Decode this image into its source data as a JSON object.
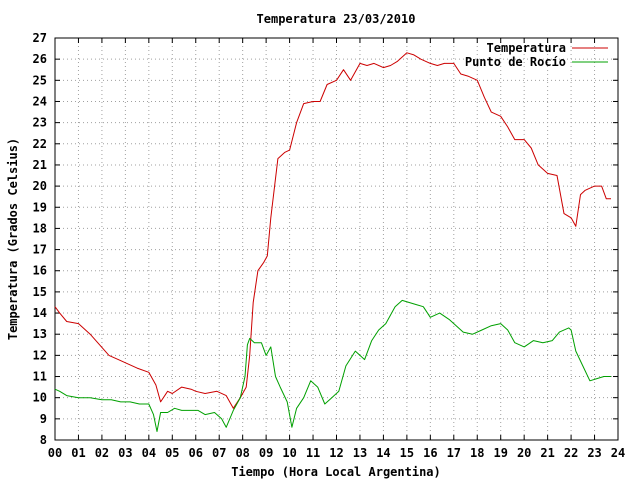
{
  "chart_data": {
    "type": "line",
    "title": "Temperatura 23/03/2010",
    "xlabel": "Tiempo (Hora Local Argentina)",
    "ylabel": "Temperatura (Grados Celsius)",
    "xlim": [
      0,
      24
    ],
    "ylim": [
      8,
      27
    ],
    "grid": true,
    "legend_position": "top-right",
    "x_tick_labels": [
      "00",
      "01",
      "02",
      "03",
      "04",
      "05",
      "06",
      "07",
      "08",
      "09",
      "10",
      "11",
      "12",
      "13",
      "14",
      "15",
      "16",
      "17",
      "18",
      "19",
      "20",
      "21",
      "22",
      "23",
      "24"
    ],
    "y_tick_labels": [
      "8",
      "9",
      "10",
      "11",
      "12",
      "13",
      "14",
      "15",
      "16",
      "17",
      "18",
      "19",
      "20",
      "21",
      "22",
      "23",
      "24",
      "25",
      "26",
      "27"
    ],
    "series": [
      {
        "name": "Temperatura",
        "color": "#cc0000",
        "x": [
          0,
          0.2,
          0.5,
          1.0,
          1.5,
          1.9,
          2.3,
          2.7,
          3.1,
          3.5,
          4.0,
          4.3,
          4.5,
          4.8,
          5.0,
          5.4,
          5.8,
          6.0,
          6.4,
          6.9,
          7.3,
          7.6,
          7.9,
          8.15,
          8.3,
          8.45,
          8.65,
          8.9,
          9.05,
          9.2,
          9.5,
          9.8,
          10.0,
          10.3,
          10.6,
          11.0,
          11.3,
          11.6,
          12.0,
          12.3,
          12.6,
          13.0,
          13.3,
          13.6,
          14.0,
          14.3,
          14.6,
          15.0,
          15.3,
          15.6,
          16.0,
          16.3,
          16.6,
          17.0,
          17.3,
          17.6,
          18.0,
          18.3,
          18.6,
          19.0,
          19.3,
          19.6,
          20.0,
          20.3,
          20.6,
          21.0,
          21.4,
          21.7,
          22.0,
          22.2,
          22.4,
          22.6,
          23.0,
          23.3,
          23.5,
          23.7
        ],
        "values": [
          14.3,
          14.0,
          13.6,
          13.5,
          13.0,
          12.5,
          12.0,
          11.8,
          11.6,
          11.4,
          11.2,
          10.6,
          9.8,
          10.3,
          10.2,
          10.5,
          10.4,
          10.3,
          10.2,
          10.3,
          10.1,
          9.5,
          10.0,
          10.5,
          12.0,
          14.5,
          16.0,
          16.4,
          16.7,
          18.5,
          21.3,
          21.6,
          21.7,
          23.0,
          23.9,
          24.0,
          24.0,
          24.8,
          25.0,
          25.5,
          25.0,
          25.8,
          25.7,
          25.8,
          25.6,
          25.7,
          25.9,
          26.3,
          26.2,
          26.0,
          25.8,
          25.7,
          25.8,
          25.8,
          25.3,
          25.2,
          25.0,
          24.2,
          23.5,
          23.3,
          22.8,
          22.2,
          22.2,
          21.8,
          21.0,
          20.6,
          20.5,
          18.7,
          18.5,
          18.1,
          19.6,
          19.8,
          20.0,
          20.0,
          19.4,
          19.4
        ]
      },
      {
        "name": "Punto de Rocío",
        "color": "#00a000",
        "x": [
          0,
          0.2,
          0.5,
          1.0,
          1.5,
          2.0,
          2.4,
          2.8,
          3.2,
          3.6,
          4.0,
          4.2,
          4.35,
          4.5,
          4.8,
          5.1,
          5.4,
          5.8,
          6.1,
          6.4,
          6.8,
          7.1,
          7.3,
          7.6,
          7.9,
          8.1,
          8.2,
          8.3,
          8.5,
          8.8,
          9.0,
          9.2,
          9.4,
          9.6,
          9.9,
          10.1,
          10.3,
          10.6,
          10.9,
          11.2,
          11.5,
          11.8,
          12.1,
          12.4,
          12.8,
          13.0,
          13.2,
          13.5,
          13.8,
          14.1,
          14.5,
          14.8,
          15.1,
          15.4,
          15.7,
          16.0,
          16.4,
          16.8,
          17.0,
          17.4,
          17.8,
          18.2,
          18.6,
          19.0,
          19.3,
          19.6,
          20.0,
          20.4,
          20.8,
          21.2,
          21.5,
          21.9,
          22.0,
          22.2,
          22.5,
          22.8,
          23.1,
          23.4,
          23.7
        ],
        "values": [
          10.4,
          10.3,
          10.1,
          10.0,
          10.0,
          9.9,
          9.9,
          9.8,
          9.8,
          9.7,
          9.7,
          9.2,
          8.4,
          9.3,
          9.3,
          9.5,
          9.4,
          9.4,
          9.4,
          9.2,
          9.3,
          9.0,
          8.6,
          9.4,
          10.0,
          11.0,
          12.5,
          12.8,
          12.6,
          12.6,
          12.0,
          12.4,
          11.0,
          10.5,
          9.8,
          8.6,
          9.5,
          10.0,
          10.8,
          10.5,
          9.7,
          10.0,
          10.3,
          11.5,
          12.2,
          12.0,
          11.8,
          12.7,
          13.2,
          13.5,
          14.3,
          14.6,
          14.5,
          14.4,
          14.3,
          13.8,
          14.0,
          13.7,
          13.5,
          13.1,
          13.0,
          13.2,
          13.4,
          13.5,
          13.2,
          12.6,
          12.4,
          12.7,
          12.6,
          12.7,
          13.1,
          13.3,
          13.2,
          12.2,
          11.5,
          10.8,
          10.9,
          11.0,
          11.0
        ]
      }
    ]
  }
}
